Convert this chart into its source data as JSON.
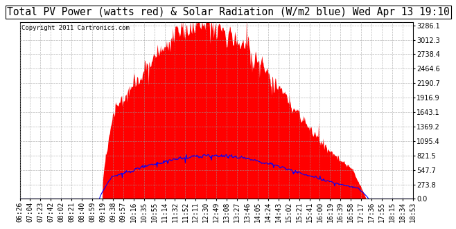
{
  "title": "Total PV Power (watts red) & Solar Radiation (W/m2 blue) Wed Apr 13 19:10",
  "copyright_text": "Copyright 2011 Cartronics.com",
  "yticks": [
    0.0,
    273.8,
    547.7,
    821.5,
    1095.4,
    1369.2,
    1643.1,
    1916.9,
    2190.7,
    2464.6,
    2738.4,
    3012.3,
    3286.1
  ],
  "ymax": 3350,
  "ymin": 0,
  "num_points": 780,
  "background_color": "#ffffff",
  "plot_bg_color": "#ffffff",
  "grid_color": "#999999",
  "fill_color": "red",
  "line_color": "blue",
  "title_fontsize": 10.5,
  "tick_fontsize": 7,
  "copyright_fontsize": 6.5,
  "solar_peak": 820,
  "pv_peak": 3286.1
}
